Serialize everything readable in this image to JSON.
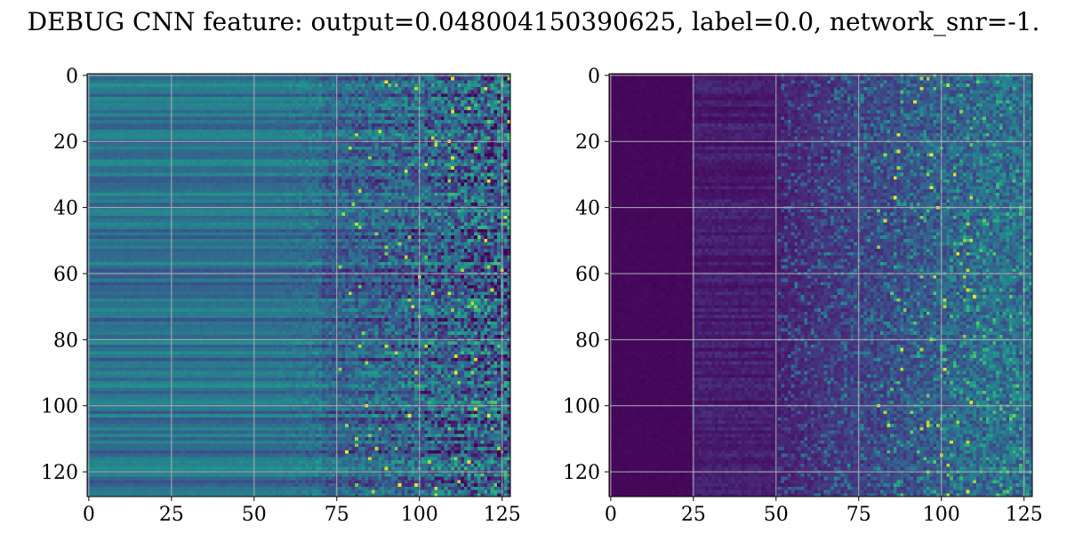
{
  "title": "DEBUG CNN feature: output=0.048004150390625, label=0.0, network_snr=-1.",
  "colors": {
    "viridis": [
      "#440154",
      "#482878",
      "#3e4989",
      "#31688e",
      "#26828e",
      "#1f9e89",
      "#35b779",
      "#6ece58",
      "#b5de2b",
      "#fde725"
    ],
    "grid": "#b0b0b0",
    "axis": "#000000"
  },
  "chart_data": [
    {
      "type": "heatmap",
      "name": "left-panel",
      "title": "",
      "xlabel": "",
      "ylabel": "",
      "shape": [
        128,
        128
      ],
      "xlim": [
        -0.5,
        127.5
      ],
      "ylim": [
        127.5,
        -0.5
      ],
      "xticks": [
        0,
        25,
        50,
        75,
        100,
        125
      ],
      "yticks": [
        0,
        20,
        40,
        60,
        80,
        100,
        120
      ],
      "grid": true,
      "colormap": "viridis",
      "description_of_values": "Rows are horizontal bands; columns 0-50 smooth teal/blue bands, noisy speckle increasing beyond column ~60, bright yellow hot spots around columns 80-110"
    },
    {
      "type": "heatmap",
      "name": "right-panel",
      "title": "",
      "xlabel": "",
      "ylabel": "",
      "shape": [
        128,
        128
      ],
      "xlim": [
        -0.5,
        127.5
      ],
      "ylim": [
        127.5,
        -0.5
      ],
      "xticks": [
        0,
        25,
        50,
        75,
        100,
        125
      ],
      "yticks": [
        0,
        20,
        40,
        60,
        80,
        100,
        120
      ],
      "grid": true,
      "colormap": "viridis",
      "description_of_values": "Mostly dark purple for columns 0-50, faint bands 25-50, activity rising after column ~50 with bright spots around columns 85-110"
    }
  ]
}
